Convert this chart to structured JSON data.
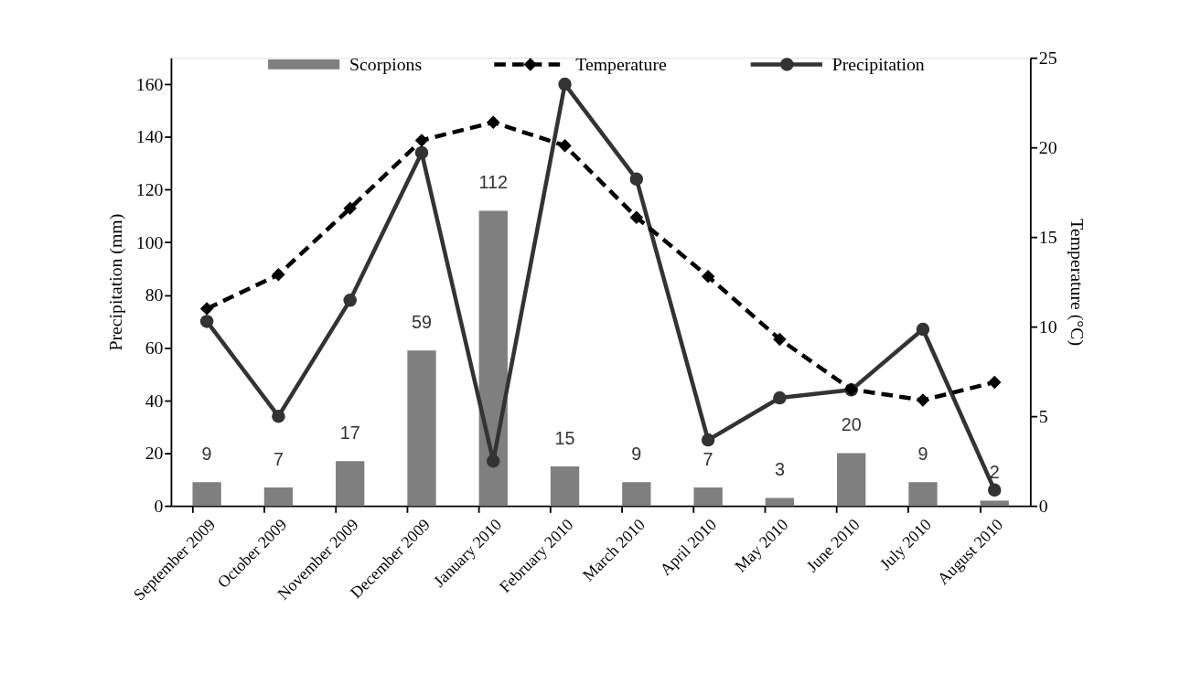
{
  "chart_data": {
    "type": "bar",
    "xlabel": null,
    "categories": [
      "September 2009",
      "October 2009",
      "November 2009",
      "December 2009",
      "January 2010",
      "February 2010",
      "March 2010",
      "April 2010",
      "May 2010",
      "June 2010",
      "July 2010",
      "August 2010"
    ],
    "series": [
      {
        "name": "Scorpions",
        "color": "#7f7f7f",
        "values": [
          9,
          7,
          17,
          59,
          112,
          15,
          9,
          7,
          3,
          20,
          9,
          2
        ],
        "value_labels": [
          "9",
          "7",
          "17",
          "59",
          "112",
          "15",
          "9",
          "7",
          "3",
          "20",
          "9",
          "2"
        ]
      },
      {
        "name": "Temperature",
        "type": "line",
        "axis": "y2",
        "color": "#000000",
        "marker": "diamond",
        "line_style": "dashed",
        "values": [
          11,
          12.9,
          16.6,
          20.4,
          21.4,
          20.1,
          16.1,
          12.8,
          9.3,
          6.5,
          5.9,
          6.9
        ]
      },
      {
        "name": "Precipitation",
        "type": "line",
        "color": "#333333",
        "marker": "circle",
        "line_style": "solid",
        "values": [
          70,
          34,
          78,
          134,
          17,
          160,
          124,
          25,
          41,
          44,
          67,
          6
        ]
      }
    ],
    "ylabel": "Precipitation (mm)",
    "y2label": "Temperature (°C)",
    "ylim": [
      0,
      170
    ],
    "yticks": [
      0,
      20,
      40,
      60,
      80,
      100,
      120,
      140,
      160
    ],
    "y2lim": [
      0,
      25
    ],
    "y2ticks": [
      0,
      5,
      10,
      15,
      20,
      25
    ],
    "grid": false,
    "legend": "top"
  }
}
